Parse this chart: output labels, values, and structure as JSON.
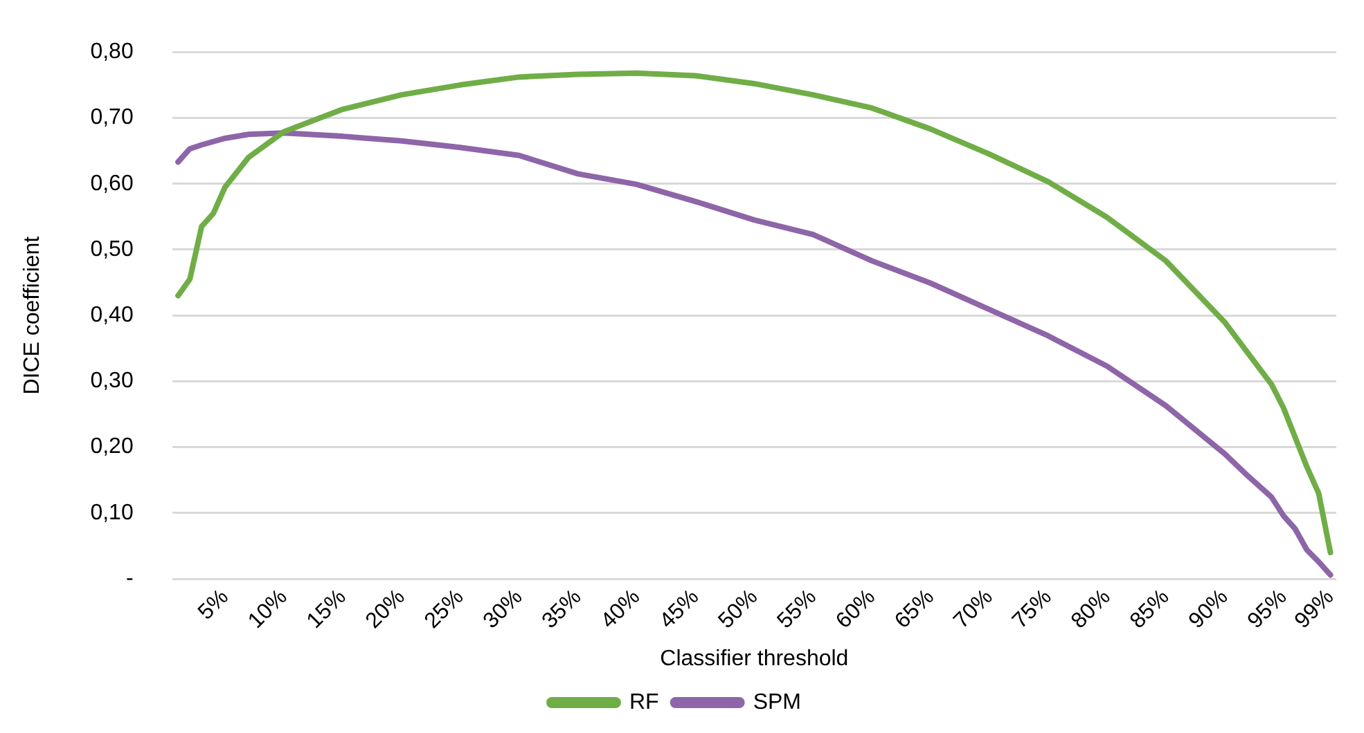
{
  "chart_data": {
    "type": "line",
    "xlabel": "Classifier threshold",
    "ylabel": "DICE coefficient",
    "xlim": [
      0.5,
      99.5
    ],
    "xticks": [
      {
        "value": 5,
        "label": "5%"
      },
      {
        "value": 10,
        "label": "10%"
      },
      {
        "value": 15,
        "label": "15%"
      },
      {
        "value": 20,
        "label": "20%"
      },
      {
        "value": 25,
        "label": "25%"
      },
      {
        "value": 30,
        "label": "30%"
      },
      {
        "value": 35,
        "label": "35%"
      },
      {
        "value": 40,
        "label": "40%"
      },
      {
        "value": 45,
        "label": "45%"
      },
      {
        "value": 50,
        "label": "50%"
      },
      {
        "value": 55,
        "label": "55%"
      },
      {
        "value": 60,
        "label": "60%"
      },
      {
        "value": 65,
        "label": "65%"
      },
      {
        "value": 70,
        "label": "70%"
      },
      {
        "value": 75,
        "label": "75%"
      },
      {
        "value": 80,
        "label": "80%"
      },
      {
        "value": 85,
        "label": "85%"
      },
      {
        "value": 90,
        "label": "90%"
      },
      {
        "value": 95,
        "label": "95%"
      },
      {
        "value": 99,
        "label": "99%"
      }
    ],
    "ylim": [
      0,
      0.8
    ],
    "yticks": [
      {
        "value": 0,
        "label": "-"
      },
      {
        "value": 0.1,
        "label": "0,10"
      },
      {
        "value": 0.2,
        "label": "0,20"
      },
      {
        "value": 0.3,
        "label": "0,30"
      },
      {
        "value": 0.4,
        "label": "0,40"
      },
      {
        "value": 0.5,
        "label": "0,50"
      },
      {
        "value": 0.6,
        "label": "0,60"
      },
      {
        "value": 0.7,
        "label": "0,70"
      },
      {
        "value": 0.8,
        "label": "0,80"
      }
    ],
    "grid": "y",
    "legend": "bottom",
    "marker": "none",
    "line_style": "solid",
    "series": [
      {
        "name": "RF",
        "color": "#70ad47",
        "x": [
          1,
          2,
          3,
          4,
          5,
          7,
          10,
          15,
          20,
          25,
          30,
          35,
          40,
          45,
          50,
          55,
          60,
          65,
          70,
          75,
          80,
          85,
          90,
          94,
          95,
          96,
          97,
          98,
          99
        ],
        "values": [
          0.43,
          0.455,
          0.535,
          0.555,
          0.595,
          0.64,
          0.679,
          0.713,
          0.735,
          0.75,
          0.762,
          0.766,
          0.768,
          0.764,
          0.752,
          0.735,
          0.715,
          0.683,
          0.645,
          0.603,
          0.549,
          0.483,
          0.39,
          0.295,
          0.26,
          0.215,
          0.17,
          0.13,
          0.04
        ]
      },
      {
        "name": "SPM",
        "color": "#8e65a8",
        "x": [
          1,
          2,
          3,
          5,
          7,
          10,
          15,
          20,
          25,
          30,
          35,
          40,
          45,
          50,
          55,
          60,
          65,
          70,
          75,
          80,
          85,
          90,
          92,
          94,
          95,
          96,
          97,
          98,
          99
        ],
        "values": [
          0.633,
          0.653,
          0.659,
          0.669,
          0.675,
          0.677,
          0.672,
          0.665,
          0.655,
          0.643,
          0.615,
          0.599,
          0.573,
          0.545,
          0.523,
          0.483,
          0.449,
          0.409,
          0.369,
          0.323,
          0.263,
          0.19,
          0.156,
          0.124,
          0.096,
          0.076,
          0.044,
          0.026,
          0.006
        ]
      }
    ]
  }
}
